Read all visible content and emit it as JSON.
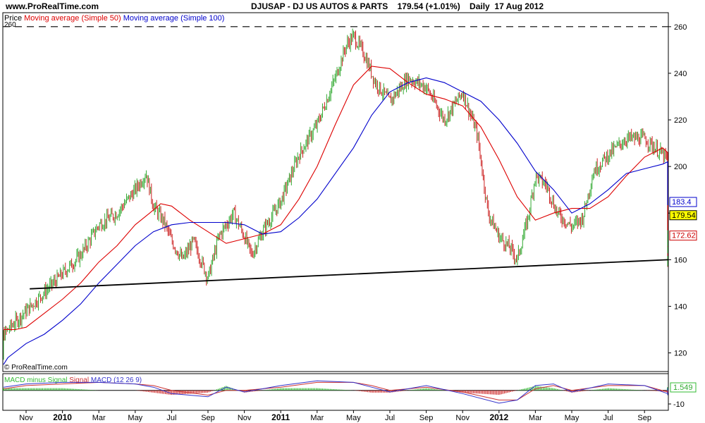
{
  "header": {
    "site": "www.ProRealTime.com",
    "symbol": "DJUSAP",
    "name": "DJ US AUTOS & PARTS",
    "last": "179.54",
    "change": "(+1.01%)",
    "period": "Daily",
    "date": "17 Aug 2012"
  },
  "legend": {
    "price": "Price",
    "ma50": "Moving average (Simple 50)",
    "ma100": "Moving average (Simple 100)",
    "ref_value": "260"
  },
  "watermark": "© ProRealTime.com",
  "macd_panel": {
    "legend_hist": "MACD minus Signal",
    "legend_signal": "Signal",
    "legend_macd": "MACD (12 26 9)",
    "last_value": "1.549",
    "tick": "-10"
  },
  "value_tags": [
    {
      "label": "183.4",
      "value": 183.4,
      "color": "#0000cc",
      "fill": "#ffffff"
    },
    {
      "label": "179.54",
      "value": 179.54,
      "color": "#000000",
      "fill": "#ffff00"
    },
    {
      "label": "172.62",
      "value": 172.62,
      "color": "#cc0000",
      "fill": "#ffffff"
    }
  ],
  "colors": {
    "candles_up": "#33aa33",
    "candles_down": "#cc2222",
    "ma50": "#dd0000",
    "ma100": "#0000cc",
    "trendline": "#000000",
    "macd_hist": "#33bb33",
    "macd_signal": "#cc3333",
    "macd_line": "#3333cc"
  },
  "chart_data": {
    "type": "line",
    "x_ticks": [
      "Nov",
      "2010",
      "Mar",
      "May",
      "Jul",
      "Sep",
      "Nov",
      "2011",
      "Mar",
      "May",
      "Jul",
      "Sep",
      "Nov",
      "2012",
      "Mar",
      "May",
      "Jul",
      "Sep"
    ],
    "y_ticks": [
      120,
      140,
      160,
      180,
      200,
      220,
      240,
      260
    ],
    "ylim": [
      112,
      266
    ],
    "reference_line": 260,
    "trendline": [
      {
        "t": 0.1,
        "y": 147.5
      },
      {
        "t": 19.5,
        "y": 160
      }
    ],
    "price": [
      {
        "t": -1.0,
        "y": 120
      },
      {
        "t": -0.5,
        "y": 130
      },
      {
        "t": 0.0,
        "y": 138
      },
      {
        "t": 0.5,
        "y": 146
      },
      {
        "t": 1.0,
        "y": 154
      },
      {
        "t": 1.5,
        "y": 162
      },
      {
        "t": 2.0,
        "y": 175
      },
      {
        "t": 2.5,
        "y": 180
      },
      {
        "t": 3.0,
        "y": 190
      },
      {
        "t": 3.3,
        "y": 197
      },
      {
        "t": 3.5,
        "y": 183
      },
      {
        "t": 3.8,
        "y": 176
      },
      {
        "t": 4.0,
        "y": 168
      },
      {
        "t": 4.3,
        "y": 160
      },
      {
        "t": 4.6,
        "y": 168
      },
      {
        "t": 5.0,
        "y": 152
      },
      {
        "t": 5.3,
        "y": 170
      },
      {
        "t": 5.7,
        "y": 180
      },
      {
        "t": 6.0,
        "y": 170
      },
      {
        "t": 6.2,
        "y": 162
      },
      {
        "t": 6.5,
        "y": 172
      },
      {
        "t": 7.0,
        "y": 185
      },
      {
        "t": 7.5,
        "y": 205
      },
      {
        "t": 8.0,
        "y": 218
      },
      {
        "t": 8.5,
        "y": 238
      },
      {
        "t": 8.8,
        "y": 252
      },
      {
        "t": 9.0,
        "y": 256
      },
      {
        "t": 9.3,
        "y": 248
      },
      {
        "t": 9.6,
        "y": 236
      },
      {
        "t": 10.0,
        "y": 228
      },
      {
        "t": 10.5,
        "y": 238
      },
      {
        "t": 11.0,
        "y": 234
      },
      {
        "t": 11.5,
        "y": 220
      },
      {
        "t": 12.0,
        "y": 232
      },
      {
        "t": 12.4,
        "y": 214
      },
      {
        "t": 12.7,
        "y": 180
      },
      {
        "t": 13.0,
        "y": 170
      },
      {
        "t": 13.3,
        "y": 165
      },
      {
        "t": 13.5,
        "y": 160
      },
      {
        "t": 13.8,
        "y": 178
      },
      {
        "t": 14.0,
        "y": 196
      },
      {
        "t": 14.3,
        "y": 192
      },
      {
        "t": 14.6,
        "y": 180
      },
      {
        "t": 15.0,
        "y": 174
      },
      {
        "t": 15.3,
        "y": 178
      },
      {
        "t": 15.6,
        "y": 198
      },
      {
        "t": 16.0,
        "y": 205
      },
      {
        "t": 16.5,
        "y": 212
      },
      {
        "t": 17.0,
        "y": 212
      },
      {
        "t": 17.5,
        "y": 205
      },
      {
        "t": 18.0,
        "y": 196
      },
      {
        "t": 18.3,
        "y": 186
      },
      {
        "t": 18.6,
        "y": 176
      },
      {
        "t": 19.0,
        "y": 168
      },
      {
        "t": 19.4,
        "y": 160
      },
      {
        "t": 19.7,
        "y": 168
      },
      {
        "t": 19.9,
        "y": 174
      },
      {
        "t": 20.1,
        "y": 179.5
      }
    ],
    "series": [
      {
        "name": "Moving average (Simple 50)",
        "points": [
          {
            "t": -1.0,
            "y": 130
          },
          {
            "t": -0.3,
            "y": 130
          },
          {
            "t": 0.0,
            "y": 131
          },
          {
            "t": 0.5,
            "y": 137
          },
          {
            "t": 1.0,
            "y": 143
          },
          {
            "t": 1.5,
            "y": 150
          },
          {
            "t": 2.0,
            "y": 159
          },
          {
            "t": 2.5,
            "y": 166
          },
          {
            "t": 3.0,
            "y": 175
          },
          {
            "t": 3.4,
            "y": 180
          },
          {
            "t": 3.7,
            "y": 184
          },
          {
            "t": 4.0,
            "y": 183
          },
          {
            "t": 4.5,
            "y": 177
          },
          {
            "t": 5.0,
            "y": 172
          },
          {
            "t": 5.5,
            "y": 167
          },
          {
            "t": 6.0,
            "y": 169
          },
          {
            "t": 6.5,
            "y": 171
          },
          {
            "t": 7.0,
            "y": 175
          },
          {
            "t": 7.5,
            "y": 186
          },
          {
            "t": 8.0,
            "y": 200
          },
          {
            "t": 8.5,
            "y": 218
          },
          {
            "t": 9.0,
            "y": 235
          },
          {
            "t": 9.5,
            "y": 243
          },
          {
            "t": 10.0,
            "y": 242
          },
          {
            "t": 10.5,
            "y": 236
          },
          {
            "t": 11.0,
            "y": 231
          },
          {
            "t": 11.5,
            "y": 229
          },
          {
            "t": 12.0,
            "y": 226
          },
          {
            "t": 12.5,
            "y": 217
          },
          {
            "t": 13.0,
            "y": 203
          },
          {
            "t": 13.5,
            "y": 187
          },
          {
            "t": 14.0,
            "y": 177
          },
          {
            "t": 14.5,
            "y": 180
          },
          {
            "t": 15.0,
            "y": 182
          },
          {
            "t": 15.5,
            "y": 182
          },
          {
            "t": 16.0,
            "y": 187
          },
          {
            "t": 16.5,
            "y": 196
          },
          {
            "t": 17.0,
            "y": 204
          },
          {
            "t": 17.5,
            "y": 208
          },
          {
            "t": 18.0,
            "y": 206
          },
          {
            "t": 18.5,
            "y": 198
          },
          {
            "t": 19.0,
            "y": 190
          },
          {
            "t": 19.5,
            "y": 180
          },
          {
            "t": 20.0,
            "y": 174
          },
          {
            "t": 20.1,
            "y": 172.6
          }
        ]
      },
      {
        "name": "Moving average (Simple 100)",
        "points": [
          {
            "t": -1.0,
            "y": 115
          },
          {
            "t": -0.5,
            "y": 118
          },
          {
            "t": 0.0,
            "y": 124
          },
          {
            "t": 0.5,
            "y": 128
          },
          {
            "t": 1.0,
            "y": 134
          },
          {
            "t": 1.5,
            "y": 141
          },
          {
            "t": 2.0,
            "y": 150
          },
          {
            "t": 2.5,
            "y": 158
          },
          {
            "t": 3.0,
            "y": 166
          },
          {
            "t": 3.5,
            "y": 172
          },
          {
            "t": 4.0,
            "y": 175
          },
          {
            "t": 4.5,
            "y": 176
          },
          {
            "t": 5.0,
            "y": 176
          },
          {
            "t": 5.5,
            "y": 176
          },
          {
            "t": 6.0,
            "y": 175
          },
          {
            "t": 6.5,
            "y": 171
          },
          {
            "t": 7.0,
            "y": 172
          },
          {
            "t": 7.5,
            "y": 178
          },
          {
            "t": 8.0,
            "y": 186
          },
          {
            "t": 8.5,
            "y": 197
          },
          {
            "t": 9.0,
            "y": 208
          },
          {
            "t": 9.5,
            "y": 222
          },
          {
            "t": 10.0,
            "y": 232
          },
          {
            "t": 10.5,
            "y": 236
          },
          {
            "t": 11.0,
            "y": 238
          },
          {
            "t": 11.5,
            "y": 236
          },
          {
            "t": 12.0,
            "y": 232
          },
          {
            "t": 12.5,
            "y": 228
          },
          {
            "t": 13.0,
            "y": 220
          },
          {
            "t": 13.5,
            "y": 210
          },
          {
            "t": 14.0,
            "y": 198
          },
          {
            "t": 14.5,
            "y": 190
          },
          {
            "t": 15.0,
            "y": 180
          },
          {
            "t": 15.5,
            "y": 184
          },
          {
            "t": 16.0,
            "y": 190
          },
          {
            "t": 16.5,
            "y": 197
          },
          {
            "t": 17.0,
            "y": 199
          },
          {
            "t": 17.5,
            "y": 201
          },
          {
            "t": 18.0,
            "y": 202
          },
          {
            "t": 18.5,
            "y": 199
          },
          {
            "t": 19.0,
            "y": 196
          },
          {
            "t": 19.5,
            "y": 190
          },
          {
            "t": 20.0,
            "y": 184
          },
          {
            "t": 20.1,
            "y": 183.4
          }
        ]
      }
    ],
    "macd": {
      "macd": [
        {
          "t": -1.0,
          "y": 2
        },
        {
          "t": 0.0,
          "y": 4
        },
        {
          "t": 1.0,
          "y": 5
        },
        {
          "t": 2.0,
          "y": 5
        },
        {
          "t": 3.0,
          "y": 4
        },
        {
          "t": 3.5,
          "y": 2
        },
        {
          "t": 4.0,
          "y": -2
        },
        {
          "t": 5.0,
          "y": -4
        },
        {
          "t": 5.5,
          "y": 2
        },
        {
          "t": 6.0,
          "y": -1
        },
        {
          "t": 7.0,
          "y": 3
        },
        {
          "t": 8.0,
          "y": 6
        },
        {
          "t": 9.0,
          "y": 5
        },
        {
          "t": 9.5,
          "y": 2
        },
        {
          "t": 10.0,
          "y": -1
        },
        {
          "t": 11.0,
          "y": 3
        },
        {
          "t": 12.0,
          "y": -2
        },
        {
          "t": 13.0,
          "y": -8
        },
        {
          "t": 13.5,
          "y": -6
        },
        {
          "t": 14.0,
          "y": 3
        },
        {
          "t": 14.5,
          "y": 4
        },
        {
          "t": 15.0,
          "y": -1
        },
        {
          "t": 16.0,
          "y": 4
        },
        {
          "t": 17.0,
          "y": 3
        },
        {
          "t": 18.0,
          "y": -2
        },
        {
          "t": 19.0,
          "y": -3
        },
        {
          "t": 19.5,
          "y": -2
        },
        {
          "t": 20.1,
          "y": 1.5
        }
      ],
      "signal": [
        {
          "t": -1.0,
          "y": 1
        },
        {
          "t": 0.0,
          "y": 3
        },
        {
          "t": 1.0,
          "y": 4
        },
        {
          "t": 2.0,
          "y": 5
        },
        {
          "t": 3.0,
          "y": 4
        },
        {
          "t": 3.5,
          "y": 3
        },
        {
          "t": 4.0,
          "y": 0
        },
        {
          "t": 5.0,
          "y": -3
        },
        {
          "t": 5.5,
          "y": 0
        },
        {
          "t": 6.0,
          "y": 0
        },
        {
          "t": 7.0,
          "y": 2
        },
        {
          "t": 8.0,
          "y": 5
        },
        {
          "t": 9.0,
          "y": 5
        },
        {
          "t": 9.5,
          "y": 3
        },
        {
          "t": 10.0,
          "y": 0
        },
        {
          "t": 11.0,
          "y": 2
        },
        {
          "t": 12.0,
          "y": -1
        },
        {
          "t": 13.0,
          "y": -6
        },
        {
          "t": 13.5,
          "y": -6
        },
        {
          "t": 14.0,
          "y": 1
        },
        {
          "t": 14.5,
          "y": 3
        },
        {
          "t": 15.0,
          "y": 0
        },
        {
          "t": 16.0,
          "y": 3
        },
        {
          "t": 17.0,
          "y": 3
        },
        {
          "t": 18.0,
          "y": -1
        },
        {
          "t": 19.0,
          "y": -2
        },
        {
          "t": 19.5,
          "y": -2
        },
        {
          "t": 20.1,
          "y": 0
        }
      ]
    }
  }
}
